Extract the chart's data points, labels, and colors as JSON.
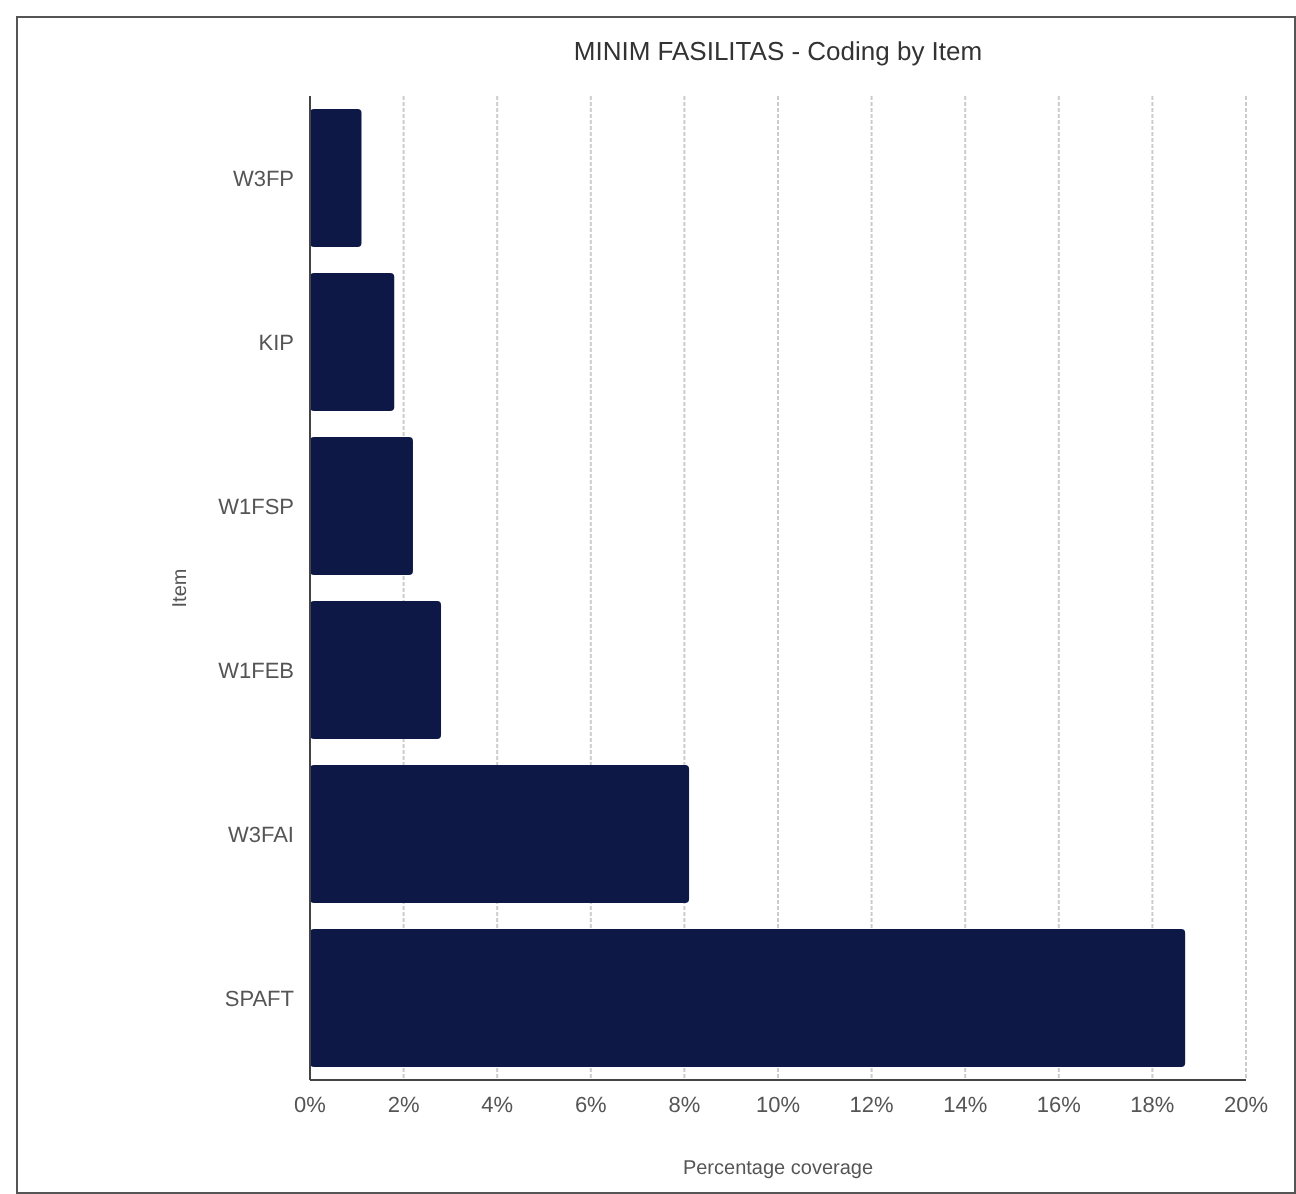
{
  "chart_data": {
    "type": "bar",
    "orientation": "horizontal",
    "title": "MINIM FASILITAS - Coding by Item",
    "xlabel": "Percentage coverage",
    "ylabel": "Item",
    "categories": [
      "W3FP",
      "KIP",
      "W1FSP",
      "W1FEB",
      "W3FAI",
      "SPAFT"
    ],
    "values": [
      1.1,
      1.8,
      2.2,
      2.8,
      8.1,
      18.7
    ],
    "color": "#0e1847",
    "xlim": [
      0,
      20
    ],
    "xticks": [
      {
        "value": 0,
        "label": "0%"
      },
      {
        "value": 2,
        "label": "2%"
      },
      {
        "value": 4,
        "label": "4%"
      },
      {
        "value": 6,
        "label": "6%"
      },
      {
        "value": 8,
        "label": "8%"
      },
      {
        "value": 10,
        "label": "10%"
      },
      {
        "value": 12,
        "label": "12%"
      },
      {
        "value": 14,
        "label": "14%"
      },
      {
        "value": 16,
        "label": "16%"
      },
      {
        "value": 18,
        "label": "18%"
      },
      {
        "value": 20,
        "label": "20%"
      }
    ],
    "grid": "x"
  }
}
